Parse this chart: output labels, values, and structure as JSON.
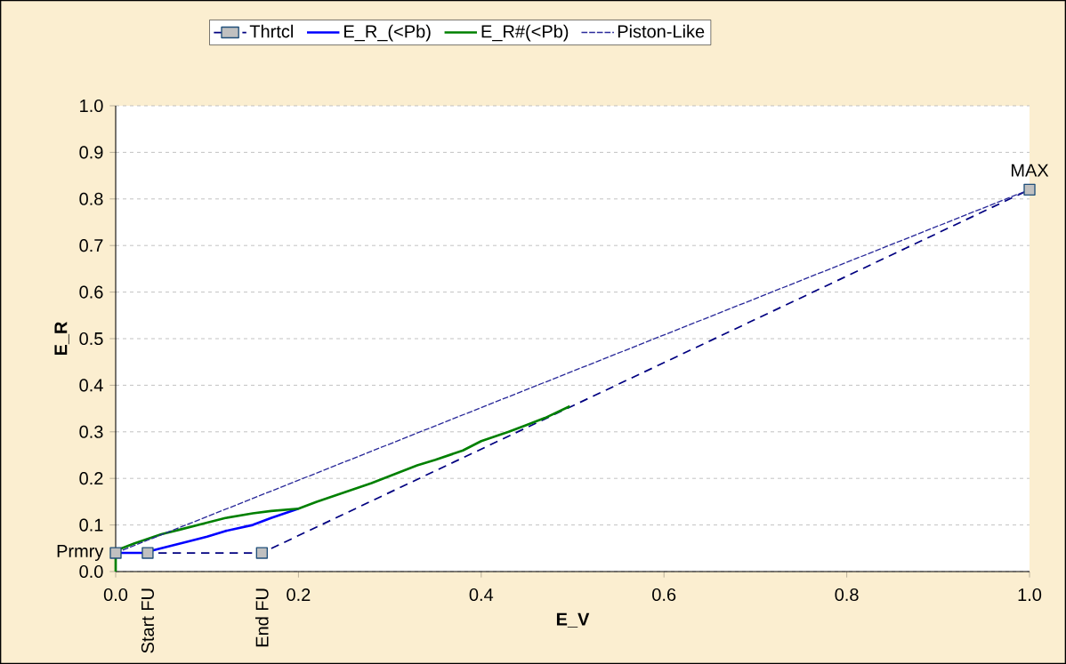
{
  "chart_data": {
    "type": "line",
    "xlabel": "E_V",
    "ylabel": "E_R",
    "xlim": [
      0,
      1
    ],
    "ylim": [
      0,
      1
    ],
    "xticks": [
      {
        "value": 0,
        "label": "0.0"
      },
      {
        "value": 0.2,
        "label": "0.2"
      },
      {
        "value": 0.4,
        "label": "0.4"
      },
      {
        "value": 0.6,
        "label": "0.6"
      },
      {
        "value": 0.8,
        "label": "0.8"
      },
      {
        "value": 1,
        "label": "1.0"
      }
    ],
    "yticks": [
      {
        "value": 0,
        "label": "0.0"
      },
      {
        "value": 0.1,
        "label": "0.1"
      },
      {
        "value": 0.2,
        "label": "0.2"
      },
      {
        "value": 0.3,
        "label": "0.3"
      },
      {
        "value": 0.4,
        "label": "0.4"
      },
      {
        "value": 0.5,
        "label": "0.5"
      },
      {
        "value": 0.6,
        "label": "0.6"
      },
      {
        "value": 0.7,
        "label": "0.7"
      },
      {
        "value": 0.8,
        "label": "0.8"
      },
      {
        "value": 0.9,
        "label": "0.9"
      },
      {
        "value": 1,
        "label": "1.0"
      }
    ],
    "grid": "y",
    "legend": "top",
    "series": [
      {
        "name": "Thrtcl",
        "color": "#000080",
        "line_style": "dashed",
        "marker": "square",
        "x": [
          0,
          0.035,
          0.16,
          1.0
        ],
        "values": [
          0.04,
          0.04,
          0.04,
          0.82
        ]
      },
      {
        "name": "E_R_(<Pb)",
        "color": "#0000ff",
        "line_style": "solid",
        "marker": "none",
        "x": [
          0,
          0.03,
          0.05,
          0.08,
          0.1,
          0.12,
          0.15,
          0.17,
          0.2
        ],
        "values": [
          0.04,
          0.04,
          0.05,
          0.065,
          0.075,
          0.087,
          0.1,
          0.115,
          0.135
        ]
      },
      {
        "name": "E_R#(<Pb)",
        "color": "#008000",
        "line_style": "solid",
        "marker": "none",
        "x": [
          0,
          0,
          0.02,
          0.05,
          0.07,
          0.1,
          0.12,
          0.15,
          0.17,
          0.2,
          0.22,
          0.25,
          0.28,
          0.3,
          0.33,
          0.35,
          0.38,
          0.4,
          0.43,
          0.45,
          0.47,
          0.497
        ],
        "values": [
          0,
          0.045,
          0.06,
          0.08,
          0.09,
          0.105,
          0.115,
          0.125,
          0.13,
          0.135,
          0.15,
          0.17,
          0.19,
          0.205,
          0.228,
          0.24,
          0.26,
          0.28,
          0.3,
          0.315,
          0.33,
          0.355
        ]
      },
      {
        "name": "Piston-Like",
        "color": "#2a2a9a",
        "line_style": "dotted",
        "marker": "none",
        "x": [
          0,
          1.0
        ],
        "values": [
          0.04,
          0.82
        ]
      }
    ],
    "annotations": [
      {
        "text": "Prmry",
        "x": 0,
        "y": 0.04
      },
      {
        "text": "Start FU",
        "x": 0.035,
        "y": 0.04
      },
      {
        "text": "End FU",
        "x": 0.16,
        "y": 0.04
      },
      {
        "text": "MAX",
        "x": 1.0,
        "y": 0.82
      }
    ]
  }
}
